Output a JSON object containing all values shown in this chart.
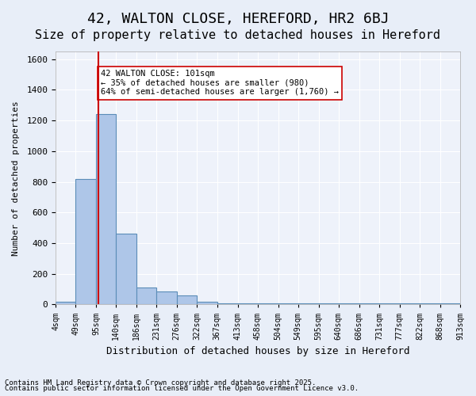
{
  "title1": "42, WALTON CLOSE, HEREFORD, HR2 6BJ",
  "title2": "Size of property relative to detached houses in Hereford",
  "xlabel": "Distribution of detached houses by size in Hereford",
  "ylabel": "Number of detached properties",
  "bins": [
    4,
    49,
    95,
    140,
    186,
    231,
    276,
    322,
    367,
    413,
    458,
    504,
    549,
    595,
    640,
    686,
    731,
    777,
    822,
    868,
    913
  ],
  "counts": [
    20,
    820,
    1240,
    460,
    110,
    85,
    60,
    15,
    5,
    5,
    5,
    5,
    5,
    5,
    5,
    5,
    5,
    5,
    5,
    5
  ],
  "bar_color": "#aec6e8",
  "bar_edge_color": "#5b8db8",
  "vline_x": 101,
  "vline_color": "#cc0000",
  "annotation_text": "42 WALTON CLOSE: 101sqm\n← 35% of detached houses are smaller (980)\n64% of semi-detached houses are larger (1,760) →",
  "annotation_box_color": "#ffffff",
  "annotation_box_edge": "#cc0000",
  "ylim": [
    0,
    1650
  ],
  "yticks": [
    0,
    200,
    400,
    600,
    800,
    1000,
    1200,
    1400,
    1600
  ],
  "footer1": "Contains HM Land Registry data © Crown copyright and database right 2025.",
  "footer2": "Contains public sector information licensed under the Open Government Licence v3.0.",
  "bg_color": "#e8eef8",
  "plot_bg_color": "#eef2fa",
  "grid_color": "#ffffff",
  "title1_fontsize": 13,
  "title2_fontsize": 11
}
